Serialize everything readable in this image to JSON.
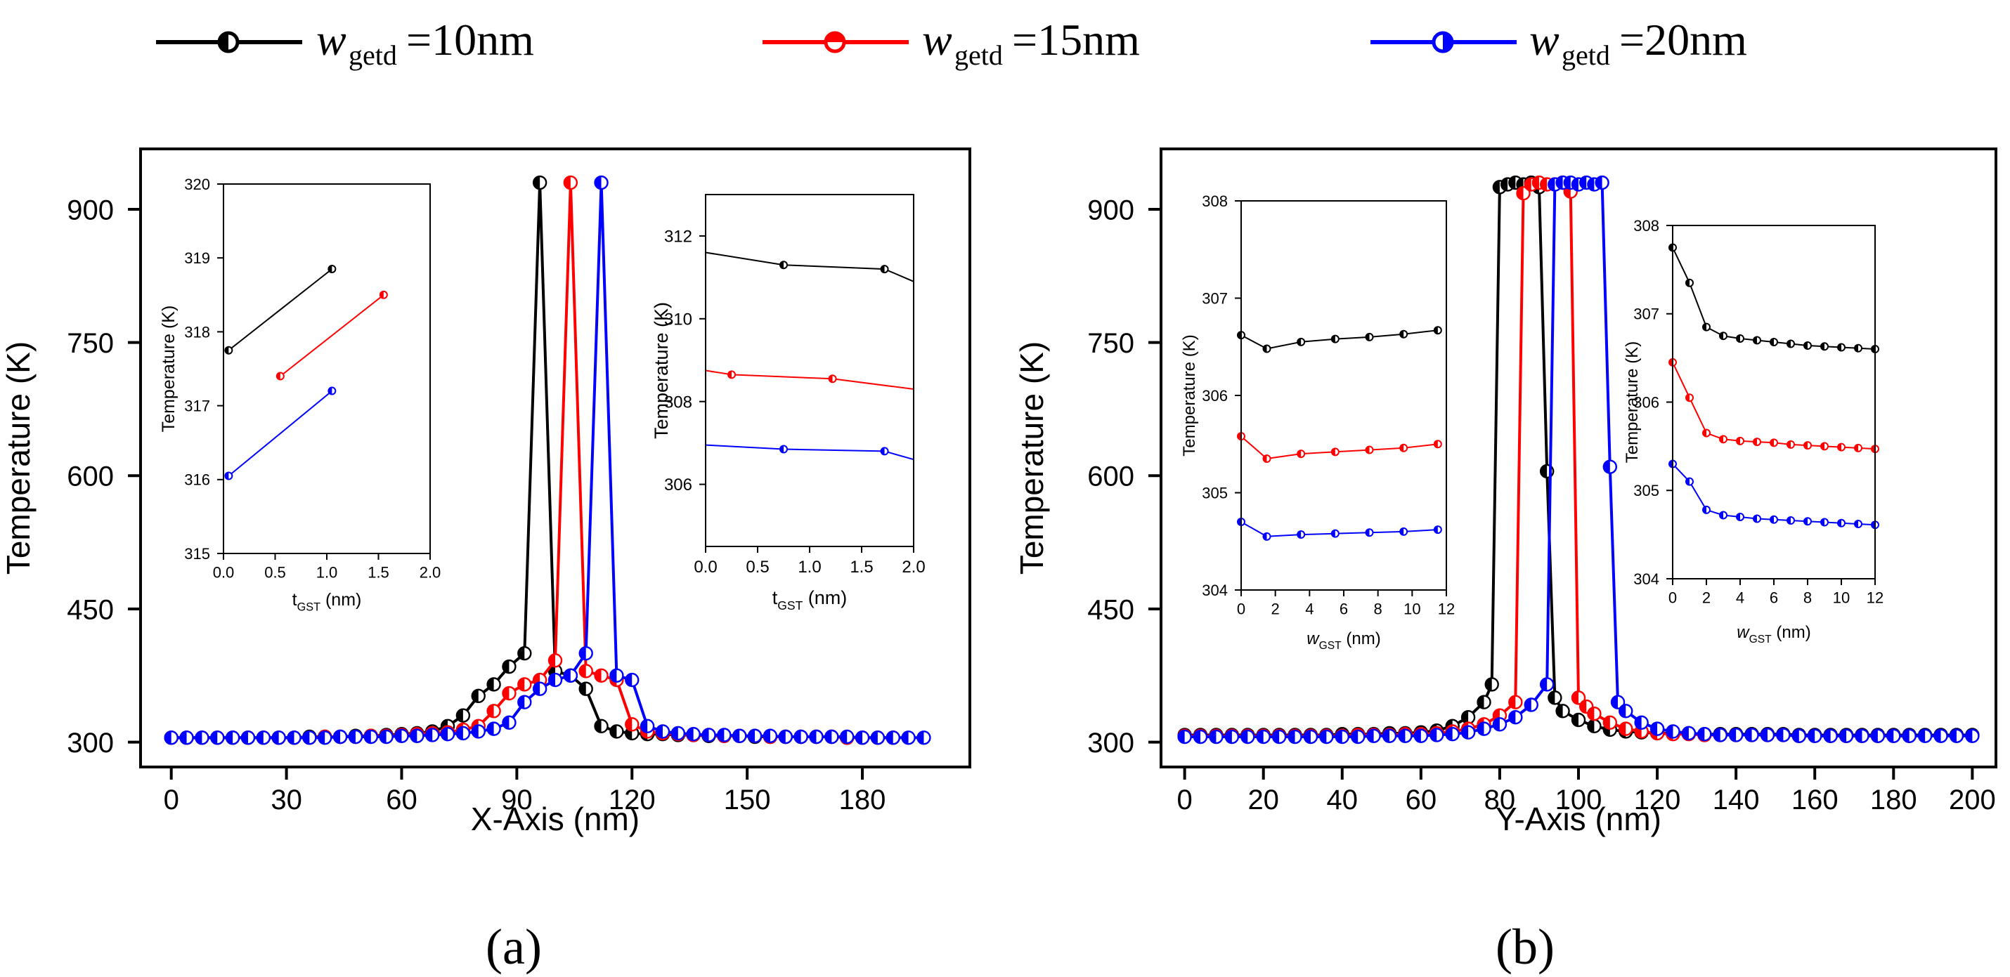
{
  "legend": {
    "entries": [
      {
        "symbol": "w",
        "sub": "getd",
        "label": "=10nm",
        "color": "#000000"
      },
      {
        "symbol": "w",
        "sub": "getd",
        "label": "=15nm",
        "color": "#ff0000"
      },
      {
        "symbol": "w",
        "sub": "getd",
        "label": "=20nm",
        "color": "#0000ff"
      }
    ]
  },
  "panel_labels": [
    "(a)",
    "(b)"
  ],
  "chart_data": [
    {
      "id": "a-main",
      "type": "line",
      "xlabel": "X-Axis (nm)",
      "ylabel": "Temperature (K)",
      "xlim": [
        -8,
        208
      ],
      "ylim": [
        272,
        968
      ],
      "xticks": [
        0,
        30,
        60,
        90,
        120,
        150,
        180
      ],
      "yticks": [
        300,
        450,
        600,
        750,
        900
      ],
      "grid": false,
      "series": [
        {
          "name": "wgetd=10nm",
          "color": "#000000",
          "x": [
            0,
            4,
            8,
            12,
            16,
            20,
            24,
            28,
            32,
            36,
            40,
            44,
            48,
            52,
            56,
            60,
            64,
            68,
            72,
            76,
            80,
            84,
            88,
            92,
            96,
            100,
            104,
            108,
            112,
            116,
            120,
            124,
            128,
            132,
            136,
            140,
            144,
            148,
            152,
            156,
            160,
            164,
            168,
            172,
            176,
            180,
            184,
            188
          ],
          "y": [
            305,
            305,
            305,
            305,
            305,
            305,
            305,
            305,
            305,
            306,
            306,
            306,
            307,
            307,
            308,
            309,
            310,
            312,
            318,
            330,
            352,
            365,
            385,
            400,
            930,
            380,
            375,
            360,
            318,
            312,
            310,
            309,
            309,
            308,
            308,
            307,
            307,
            307,
            306,
            306,
            306,
            306,
            306,
            306,
            305,
            305,
            305,
            305
          ]
        },
        {
          "name": "wgetd=15nm",
          "color": "#ff0000",
          "x": [
            0,
            4,
            8,
            12,
            16,
            20,
            24,
            28,
            32,
            36,
            40,
            44,
            48,
            52,
            56,
            60,
            64,
            68,
            72,
            76,
            80,
            84,
            88,
            92,
            96,
            100,
            104,
            108,
            112,
            116,
            120,
            124,
            128,
            132,
            136,
            140,
            144,
            148,
            152,
            156,
            160,
            164,
            168,
            172,
            176,
            180,
            184,
            188
          ],
          "y": [
            305,
            305,
            305,
            305,
            305,
            305,
            305,
            305,
            305,
            305,
            306,
            306,
            306,
            307,
            307,
            308,
            309,
            310,
            311,
            314,
            318,
            335,
            355,
            365,
            370,
            392,
            930,
            380,
            375,
            370,
            320,
            312,
            310,
            309,
            308,
            308,
            307,
            307,
            307,
            306,
            306,
            306,
            306,
            306,
            305,
            305,
            305,
            305
          ]
        },
        {
          "name": "wgetd=20nm",
          "color": "#0000ff",
          "x": [
            0,
            4,
            8,
            12,
            16,
            20,
            24,
            28,
            32,
            36,
            40,
            44,
            48,
            52,
            56,
            60,
            64,
            68,
            72,
            76,
            80,
            84,
            88,
            92,
            96,
            100,
            104,
            108,
            112,
            116,
            120,
            124,
            128,
            132,
            136,
            140,
            144,
            148,
            152,
            156,
            160,
            164,
            168,
            172,
            176,
            180,
            184,
            188,
            192,
            196
          ],
          "y": [
            305,
            305,
            305,
            305,
            305,
            305,
            305,
            305,
            305,
            305,
            305,
            306,
            306,
            306,
            306,
            307,
            307,
            308,
            309,
            310,
            312,
            315,
            322,
            345,
            360,
            370,
            375,
            400,
            930,
            375,
            370,
            318,
            312,
            310,
            309,
            308,
            308,
            307,
            307,
            307,
            306,
            306,
            306,
            306,
            306,
            305,
            305,
            305,
            305,
            305
          ]
        }
      ]
    },
    {
      "id": "a-inset-left",
      "type": "line",
      "xlabel": "t",
      "xlabel_sub": "GST",
      "xlabel_unit": " (nm)",
      "ylabel": "Temperature (K)",
      "xlim": [
        0,
        2.0
      ],
      "ylim": [
        315,
        320
      ],
      "xticks": [
        "0.0",
        "0.5",
        "1.0",
        "1.5",
        "2.0"
      ],
      "yticks": [
        "315",
        "316",
        "317",
        "318",
        "319",
        "320"
      ],
      "series": [
        {
          "name": "wgetd=10nm",
          "color": "#000000",
          "x": [
            0.05,
            1.05
          ],
          "y": [
            317.75,
            318.85
          ]
        },
        {
          "name": "wgetd=15nm",
          "color": "#ff0000",
          "x": [
            0.55,
            1.55
          ],
          "y": [
            317.4,
            318.5
          ]
        },
        {
          "name": "wgetd=20nm",
          "color": "#0000ff",
          "x": [
            0.05,
            1.05
          ],
          "y": [
            316.05,
            317.2
          ]
        }
      ]
    },
    {
      "id": "a-inset-right",
      "type": "line",
      "xlabel": "t",
      "xlabel_sub": "GST",
      "xlabel_unit": " (nm)",
      "ylabel": "Temperature (K)",
      "xlim": [
        0,
        2.0
      ],
      "ylim": [
        304.5,
        313
      ],
      "xticks": [
        "0.0",
        "0.5",
        "1.0",
        "1.5",
        "2.0"
      ],
      "yticks": [
        "306",
        "308",
        "310",
        "312"
      ],
      "series": [
        {
          "name": "wgetd=10nm",
          "color": "#000000",
          "x": [
            0,
            0.75,
            1.72,
            2.0
          ],
          "y": [
            311.6,
            311.3,
            311.2,
            310.9
          ],
          "markers": [
            0.75,
            1.72
          ]
        },
        {
          "name": "wgetd=15nm",
          "color": "#ff0000",
          "x": [
            0,
            0.25,
            1.22,
            2.0
          ],
          "y": [
            308.75,
            308.65,
            308.55,
            308.3
          ],
          "markers": [
            0.25,
            1.22
          ]
        },
        {
          "name": "wgetd=20nm",
          "color": "#0000ff",
          "x": [
            0,
            0.75,
            1.72,
            2.0
          ],
          "y": [
            306.95,
            306.85,
            306.8,
            306.6
          ],
          "markers": [
            0.75,
            1.72
          ]
        }
      ]
    },
    {
      "id": "b-main",
      "type": "line",
      "xlabel": "Y-Axis (nm)",
      "ylabel": "Temperature (K)",
      "xlim": [
        -6,
        206
      ],
      "ylim": [
        272,
        968
      ],
      "xticks": [
        0,
        20,
        40,
        60,
        80,
        100,
        120,
        140,
        160,
        180,
        200
      ],
      "yticks": [
        300,
        450,
        600,
        750,
        900
      ],
      "grid": false,
      "series": [
        {
          "name": "wgetd=10nm",
          "color": "#000000",
          "x": [
            0,
            4,
            8,
            12,
            16,
            20,
            24,
            28,
            32,
            36,
            40,
            44,
            48,
            52,
            56,
            60,
            64,
            68,
            72,
            76,
            78,
            80,
            82,
            84,
            86,
            88,
            90,
            92,
            94,
            96,
            100,
            104,
            108,
            112,
            116,
            120,
            124,
            128,
            132,
            136,
            140,
            144,
            148,
            152,
            156,
            160,
            164,
            168,
            172,
            176,
            180,
            184,
            188,
            192,
            196,
            200
          ],
          "y": [
            308,
            308,
            308,
            308,
            308,
            308,
            308,
            308,
            308,
            308,
            309,
            309,
            309,
            310,
            310,
            311,
            313,
            318,
            328,
            345,
            365,
            925,
            928,
            930,
            928,
            930,
            925,
            605,
            350,
            335,
            325,
            318,
            314,
            312,
            311,
            310,
            310,
            310,
            309,
            309,
            309,
            309,
            309,
            309,
            308,
            308,
            308,
            308,
            308,
            308,
            308,
            308,
            308,
            308,
            308,
            308
          ]
        },
        {
          "name": "wgetd=15nm",
          "color": "#ff0000",
          "x": [
            0,
            4,
            8,
            12,
            16,
            20,
            24,
            28,
            32,
            36,
            40,
            44,
            48,
            52,
            56,
            60,
            64,
            68,
            72,
            76,
            80,
            84,
            86,
            88,
            90,
            92,
            94,
            96,
            98,
            100,
            102,
            104,
            108,
            112,
            116,
            120,
            124,
            128,
            132,
            136,
            140,
            144,
            148,
            152,
            156,
            160,
            164,
            168,
            172,
            176,
            180,
            184
          ],
          "y": [
            307,
            307,
            307,
            307,
            307,
            307,
            307,
            307,
            307,
            307,
            307,
            308,
            308,
            308,
            309,
            309,
            310,
            312,
            315,
            320,
            330,
            345,
            918,
            928,
            930,
            928,
            928,
            930,
            920,
            350,
            340,
            332,
            322,
            315,
            312,
            310,
            309,
            309,
            308,
            308,
            308,
            308,
            308,
            308,
            307,
            307,
            307,
            307,
            307,
            307,
            307,
            307
          ]
        },
        {
          "name": "wgetd=20nm",
          "color": "#0000ff",
          "x": [
            0,
            4,
            8,
            12,
            16,
            20,
            24,
            28,
            32,
            36,
            40,
            44,
            48,
            52,
            56,
            60,
            64,
            68,
            72,
            76,
            80,
            84,
            88,
            92,
            94,
            96,
            98,
            100,
            102,
            104,
            106,
            108,
            110,
            112,
            116,
            120,
            124,
            128,
            132,
            136,
            140,
            144,
            148,
            152,
            156,
            160,
            164,
            168,
            172,
            176,
            180,
            184,
            188,
            192,
            196,
            200
          ],
          "y": [
            306,
            306,
            306,
            306,
            306,
            306,
            306,
            306,
            306,
            306,
            306,
            306,
            307,
            307,
            307,
            307,
            308,
            309,
            311,
            315,
            320,
            328,
            342,
            365,
            928,
            930,
            930,
            928,
            930,
            928,
            930,
            610,
            345,
            335,
            322,
            315,
            312,
            310,
            309,
            308,
            308,
            308,
            308,
            308,
            307,
            307,
            307,
            307,
            307,
            307,
            307,
            307,
            307,
            307,
            307,
            307
          ]
        }
      ]
    },
    {
      "id": "b-inset-left",
      "type": "line",
      "xlabel": "w",
      "xlabel_sub": "GST",
      "xlabel_unit": " (nm)",
      "ylabel": "Temperature (K)",
      "xlim": [
        0,
        12
      ],
      "ylim": [
        304,
        308
      ],
      "xticks": [
        "0",
        "2",
        "4",
        "6",
        "8",
        "10",
        "12"
      ],
      "yticks": [
        "304",
        "305",
        "306",
        "307",
        "308"
      ],
      "series": [
        {
          "name": "wgetd=10nm",
          "color": "#000000",
          "x": [
            0,
            1.5,
            3.5,
            5.5,
            7.5,
            9.5,
            11.5
          ],
          "y": [
            306.62,
            306.48,
            306.55,
            306.58,
            306.6,
            306.63,
            306.67
          ]
        },
        {
          "name": "wgetd=15nm",
          "color": "#ff0000",
          "x": [
            0,
            1.5,
            3.5,
            5.5,
            7.5,
            9.5,
            11.5
          ],
          "y": [
            305.58,
            305.35,
            305.4,
            305.42,
            305.44,
            305.46,
            305.5
          ]
        },
        {
          "name": "wgetd=20nm",
          "color": "#0000ff",
          "x": [
            0,
            1.5,
            3.5,
            5.5,
            7.5,
            9.5,
            11.5
          ],
          "y": [
            304.7,
            304.55,
            304.57,
            304.58,
            304.59,
            304.6,
            304.62
          ]
        }
      ]
    },
    {
      "id": "b-inset-right",
      "type": "line",
      "xlabel": "w",
      "xlabel_sub": "GST",
      "xlabel_unit": " (nm)",
      "ylabel": "Temperature (K)",
      "xlim": [
        0,
        12
      ],
      "ylim": [
        304,
        308
      ],
      "xticks": [
        "0",
        "2",
        "4",
        "6",
        "8",
        "10",
        "12"
      ],
      "yticks": [
        "304",
        "305",
        "306",
        "307",
        "308"
      ],
      "series": [
        {
          "name": "wgetd=10nm",
          "color": "#000000",
          "x": [
            0,
            1,
            2,
            3,
            4,
            5,
            6,
            7,
            8,
            9,
            10,
            11,
            12
          ],
          "y": [
            307.75,
            307.35,
            306.85,
            306.75,
            306.72,
            306.7,
            306.68,
            306.66,
            306.64,
            306.63,
            306.62,
            306.61,
            306.6
          ]
        },
        {
          "name": "wgetd=15nm",
          "color": "#ff0000",
          "x": [
            0,
            1,
            2,
            3,
            4,
            5,
            6,
            7,
            8,
            9,
            10,
            11,
            12
          ],
          "y": [
            306.45,
            306.05,
            305.65,
            305.58,
            305.56,
            305.55,
            305.54,
            305.52,
            305.51,
            305.5,
            305.49,
            305.48,
            305.47
          ]
        },
        {
          "name": "wgetd=20nm",
          "color": "#0000ff",
          "x": [
            0,
            1,
            2,
            3,
            4,
            5,
            6,
            7,
            8,
            9,
            10,
            11,
            12
          ],
          "y": [
            305.3,
            305.1,
            304.78,
            304.72,
            304.7,
            304.68,
            304.67,
            304.66,
            304.65,
            304.64,
            304.63,
            304.62,
            304.61
          ]
        }
      ]
    }
  ]
}
